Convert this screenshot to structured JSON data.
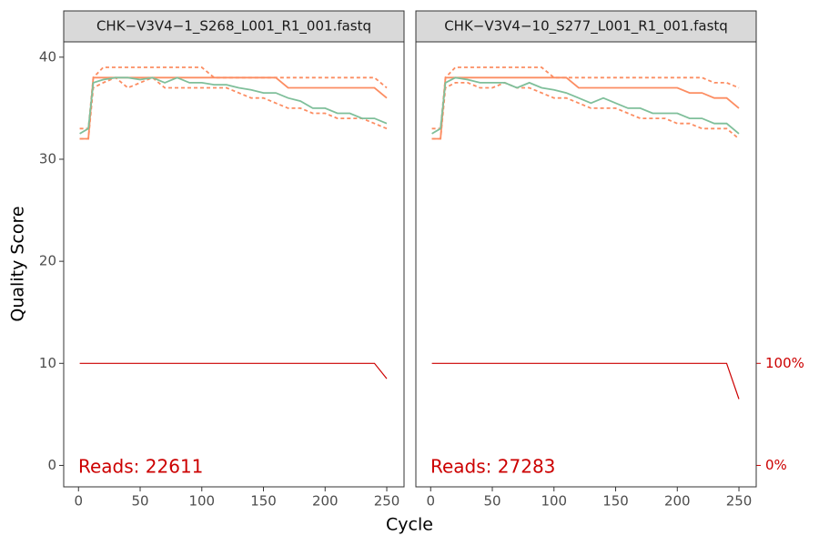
{
  "chart_data": [
    {
      "type": "line",
      "title": "CHK−V3V4−1_S268_L001_R1_001.fastq",
      "xlabel": "Cycle",
      "ylabel": "Quality Score",
      "annotation": "Reads:  22611",
      "x": [
        1,
        8,
        12,
        20,
        30,
        40,
        50,
        60,
        70,
        80,
        90,
        100,
        110,
        120,
        130,
        140,
        150,
        160,
        170,
        180,
        190,
        200,
        210,
        220,
        230,
        240,
        250
      ],
      "series": [
        {
          "color": "#fc8d62",
          "dashed": true,
          "values": [
            32,
            32,
            37,
            37.5,
            38,
            37,
            37.5,
            38,
            37,
            37,
            37,
            37,
            37,
            37,
            36.5,
            36,
            36,
            35.5,
            35,
            35,
            34.5,
            34.5,
            34,
            34,
            34,
            33.5,
            33
          ]
        },
        {
          "color": "#fc8d62",
          "dashed": true,
          "values": [
            33,
            33,
            38,
            39,
            39,
            39,
            39,
            39,
            39,
            39,
            39,
            39,
            38,
            38,
            38,
            38,
            38,
            38,
            38,
            38,
            38,
            38,
            38,
            38,
            38,
            38,
            37
          ]
        },
        {
          "color": "#fc8d62",
          "dashed": false,
          "values": [
            32,
            32,
            38,
            38,
            38,
            38,
            38,
            38,
            38,
            38,
            38,
            38,
            38,
            38,
            38,
            38,
            38,
            38,
            37,
            37,
            37,
            37,
            37,
            37,
            37,
            37,
            36
          ]
        },
        {
          "color": "#7fbf9a",
          "dashed": false,
          "values": [
            32.5,
            33,
            37.5,
            37.8,
            38,
            38,
            37.8,
            38,
            37.5,
            38,
            37.5,
            37.5,
            37.3,
            37.3,
            37,
            36.8,
            36.5,
            36.5,
            36,
            35.7,
            35,
            35,
            34.5,
            34.5,
            34,
            34,
            33.5
          ]
        },
        {
          "color": "#cc0000",
          "dashed": false,
          "axis": "y2",
          "values": [
            100,
            100,
            100,
            100,
            100,
            100,
            100,
            100,
            100,
            100,
            100,
            100,
            100,
            100,
            100,
            100,
            100,
            100,
            100,
            100,
            100,
            100,
            100,
            100,
            100,
            100,
            85
          ]
        }
      ],
      "xlim": [
        -12,
        264
      ],
      "xticks": [
        0,
        50,
        100,
        150,
        200,
        250
      ],
      "ylim": [
        -2.1,
        41.5
      ],
      "yticks": [
        0,
        10,
        20,
        30,
        40
      ],
      "y2lim": [
        -21,
        415
      ]
    },
    {
      "type": "line",
      "title": "CHK−V3V4−10_S277_L001_R1_001.fastq",
      "annotation": "Reads:  27283",
      "x": [
        1,
        8,
        12,
        20,
        30,
        40,
        50,
        60,
        70,
        80,
        90,
        100,
        110,
        120,
        130,
        140,
        150,
        160,
        170,
        180,
        190,
        200,
        210,
        220,
        230,
        240,
        250
      ],
      "series": [
        {
          "color": "#fc8d62",
          "dashed": true,
          "values": [
            32,
            32,
            37,
            37.5,
            37.5,
            37,
            37,
            37.5,
            37,
            37,
            36.5,
            36,
            36,
            35.5,
            35,
            35,
            35,
            34.5,
            34,
            34,
            34,
            33.5,
            33.5,
            33,
            33,
            33,
            32
          ]
        },
        {
          "color": "#fc8d62",
          "dashed": true,
          "values": [
            33,
            33,
            38,
            39,
            39,
            39,
            39,
            39,
            39,
            39,
            39,
            38,
            38,
            38,
            38,
            38,
            38,
            38,
            38,
            38,
            38,
            38,
            38,
            38,
            37.5,
            37.5,
            37
          ]
        },
        {
          "color": "#fc8d62",
          "dashed": false,
          "values": [
            32,
            32,
            38,
            38,
            38,
            38,
            38,
            38,
            38,
            38,
            38,
            38,
            38,
            37,
            37,
            37,
            37,
            37,
            37,
            37,
            37,
            37,
            36.5,
            36.5,
            36,
            36,
            35
          ]
        },
        {
          "color": "#7fbf9a",
          "dashed": false,
          "values": [
            32.5,
            33,
            37.5,
            38,
            37.8,
            37.5,
            37.5,
            37.5,
            37,
            37.5,
            37,
            36.8,
            36.5,
            36,
            35.5,
            36,
            35.5,
            35,
            35,
            34.5,
            34.5,
            34.5,
            34,
            34,
            33.5,
            33.5,
            32.5
          ]
        },
        {
          "color": "#cc0000",
          "dashed": false,
          "axis": "y2",
          "values": [
            100,
            100,
            100,
            100,
            100,
            100,
            100,
            100,
            100,
            100,
            100,
            100,
            100,
            100,
            100,
            100,
            100,
            100,
            100,
            100,
            100,
            100,
            100,
            100,
            100,
            100,
            65
          ]
        }
      ],
      "xlim": [
        -12,
        264
      ],
      "xticks": [
        0,
        50,
        100,
        150,
        200,
        250
      ],
      "ylim": [
        -2.1,
        41.5
      ],
      "y2lim": [
        -21,
        415
      ],
      "y2ticks": [
        {
          "value": 0,
          "label": "0%"
        },
        {
          "value": 100,
          "label": "100%"
        }
      ]
    }
  ]
}
